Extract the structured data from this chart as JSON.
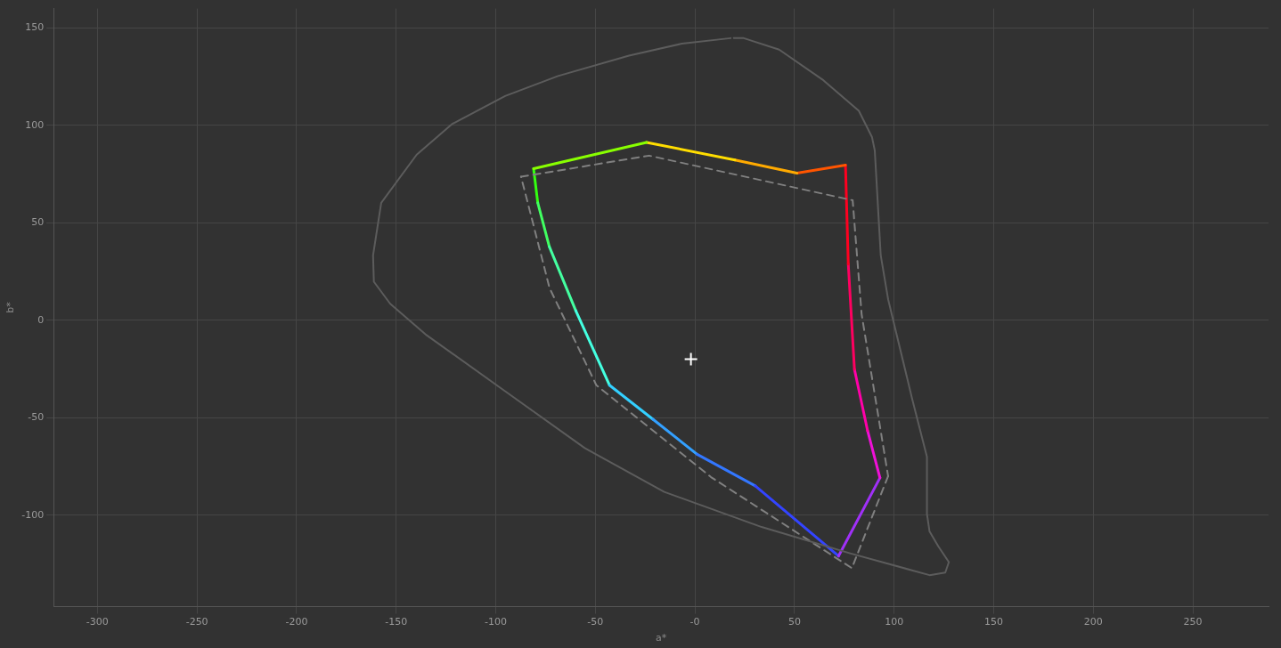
{
  "chart_data": {
    "type": "line",
    "xlabel": "a*",
    "ylabel": "b*",
    "xlim": [
      -322,
      288
    ],
    "ylim": [
      -147,
      160
    ],
    "xticks": [
      -300,
      -250,
      -200,
      -150,
      -100,
      -50,
      {
        "value": 0,
        "label": "-0"
      },
      50,
      100,
      150,
      200,
      250
    ],
    "yticks": [
      -100,
      -50,
      0,
      50,
      100,
      150
    ],
    "grid": true,
    "legend": false,
    "series": [
      {
        "color": "#5c5c5c",
        "line_style": "solid",
        "marker": "none",
        "x": [
          17.9,
          -6.5,
          -33.1,
          -68.7,
          -95.3,
          -122,
          -139.7,
          -157.5,
          -161.6,
          -161.2,
          -153,
          -135.3,
          -95.3,
          -55.3,
          -15.4,
          33.5,
          77.9,
          117.8,
          125.7,
          127.5,
          122.2,
          117.8,
          116.5,
          116.5,
          109,
          97,
          93.3,
          90.3,
          88.9,
          82.3,
          64.5,
          42.3,
          24.5,
          19.5
        ],
        "values": [
          144.8,
          142,
          135.8,
          125.4,
          115.1,
          100.7,
          85,
          60.3,
          33.3,
          19.8,
          8.5,
          -7.2,
          -36.4,
          -65.6,
          -88.1,
          -106.1,
          -119.6,
          -130.8,
          -129.5,
          -124.1,
          -116,
          -108.4,
          -99.4,
          -70.1,
          -40,
          10.8,
          33.3,
          87.2,
          94,
          107.5,
          123.2,
          138.9,
          144.8,
          144.8
        ]
      },
      {
        "color": "#808080",
        "line_style": "dashed",
        "marker": "none",
        "x": [
          -87.3,
          -23,
          79.2,
          83.7,
          97
        ],
        "values": [
          73.7,
          84.5,
          61.6,
          3.1,
          -80
        ]
      },
      {
        "color": "#808080",
        "line_style": "dashed",
        "marker": "none",
        "x": [
          97,
          78.8,
          8.1,
          -49.5,
          -73,
          -82,
          -87.3
        ],
        "values": [
          -80,
          -127.2,
          -80.5,
          -33.3,
          16.6,
          52.6,
          73.7
        ]
      },
      {
        "color": "#88ff00",
        "line_style": "solid",
        "marker": "none",
        "x": [
          -81,
          -24.3
        ],
        "values": [
          77.8,
          91.3
        ]
      },
      {
        "color": "#ffdd00",
        "line_style": "solid",
        "marker": "none",
        "x": [
          -24.3,
          20.1
        ],
        "values": [
          91.3,
          82.3
        ]
      },
      {
        "color": "#ffaa00",
        "line_style": "solid",
        "marker": "none",
        "x": [
          20.1,
          51.2
        ],
        "values": [
          82.3,
          75.5
        ]
      },
      {
        "color": "#ff5500",
        "line_style": "solid",
        "marker": "none",
        "x": [
          51.2,
          75.6
        ],
        "values": [
          75.5,
          79.6
        ]
      },
      {
        "color": "#ff0020",
        "line_style": "solid",
        "marker": "none",
        "x": [
          75.6,
          77
        ],
        "values": [
          79.6,
          28.8
        ]
      },
      {
        "color": "#ff0060",
        "line_style": "solid",
        "marker": "none",
        "x": [
          77,
          80.1
        ],
        "values": [
          28.8,
          -25.2
        ]
      },
      {
        "color": "#ff00a8",
        "line_style": "solid",
        "marker": "none",
        "x": [
          80.1,
          86.7
        ],
        "values": [
          -25.2,
          -56.7
        ]
      },
      {
        "color": "#f010d8",
        "line_style": "solid",
        "marker": "none",
        "x": [
          86.7,
          92.9
        ],
        "values": [
          -56.7,
          -80.9
        ]
      },
      {
        "color": "#a030f8",
        "line_style": "solid",
        "marker": "none",
        "x": [
          92.9,
          72.1
        ],
        "values": [
          -80.9,
          -121
        ]
      },
      {
        "color": "#3344ff",
        "line_style": "solid",
        "marker": "none",
        "x": [
          72.1,
          30.3
        ],
        "values": [
          -121,
          -85
        ]
      },
      {
        "color": "#3377ff",
        "line_style": "solid",
        "marker": "none",
        "x": [
          30.3,
          1.1
        ],
        "values": [
          -85,
          -68.8
        ]
      },
      {
        "color": "#33a0ff",
        "line_style": "solid",
        "marker": "none",
        "x": [
          1.1,
          -21.1
        ],
        "values": [
          -68.8,
          -50.8
        ]
      },
      {
        "color": "#33d0ff",
        "line_style": "solid",
        "marker": "none",
        "x": [
          -21.1,
          -42.9
        ],
        "values": [
          -50.8,
          -33.3
        ]
      },
      {
        "color": "#44ffe0",
        "line_style": "solid",
        "marker": "none",
        "x": [
          -42.9,
          -59.8
        ],
        "values": [
          -33.3,
          4.9
        ]
      },
      {
        "color": "#44ffa0",
        "line_style": "solid",
        "marker": "none",
        "x": [
          -59.8,
          -73.1
        ],
        "values": [
          4.9,
          37.8
        ]
      },
      {
        "color": "#40ff60",
        "line_style": "solid",
        "marker": "none",
        "x": [
          -73.1,
          -78.9
        ],
        "values": [
          37.8,
          60.3
        ]
      },
      {
        "color": "#33ff10",
        "line_style": "solid",
        "marker": "none",
        "x": [
          -78.9,
          -81
        ],
        "values": [
          60.3,
          77.8
        ]
      },
      {
        "type": "scatter",
        "color": "#ffffff",
        "marker": "cross",
        "x": [
          -2
        ],
        "values": [
          -20
        ]
      }
    ]
  }
}
